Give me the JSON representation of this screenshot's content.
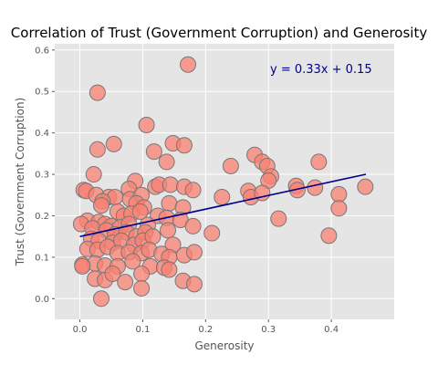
{
  "chart_data": {
    "type": "scatter",
    "title": "Correlation of Trust (Government Corruption) and Generosity",
    "xlabel": "Generosity",
    "ylabel": "Trust (Government Corruption)",
    "xlim": [
      -0.04,
      0.5
    ],
    "ylim": [
      -0.05,
      0.615
    ],
    "xticks": [
      "0.0",
      "0.1",
      "0.2",
      "0.3",
      "0.4"
    ],
    "yticks": [
      "0.0",
      "0.1",
      "0.2",
      "0.3",
      "0.4",
      "0.5",
      "0.6"
    ],
    "grid": true,
    "equation": "y = 0.33x + 0.15",
    "colors": {
      "background": "#e5e5e5",
      "grid": "#ffffff",
      "point_fill": "#fa8072",
      "point_stroke": "#777777",
      "regression_line": "#00008b",
      "equation_text": "#00008b"
    },
    "regression": {
      "slope": 0.33,
      "intercept": 0.15,
      "x_range": [
        0.0,
        0.455
      ]
    },
    "points": [
      [
        0.172,
        0.565
      ],
      [
        0.028,
        0.497
      ],
      [
        0.106,
        0.419
      ],
      [
        0.054,
        0.373
      ],
      [
        0.148,
        0.375
      ],
      [
        0.166,
        0.37
      ],
      [
        0.028,
        0.36
      ],
      [
        0.118,
        0.355
      ],
      [
        0.278,
        0.347
      ],
      [
        0.29,
        0.33
      ],
      [
        0.298,
        0.32
      ],
      [
        0.38,
        0.33
      ],
      [
        0.24,
        0.32
      ],
      [
        0.138,
        0.33
      ],
      [
        0.022,
        0.3
      ],
      [
        0.304,
        0.295
      ],
      [
        0.3,
        0.285
      ],
      [
        0.088,
        0.284
      ],
      [
        0.12,
        0.27
      ],
      [
        0.126,
        0.275
      ],
      [
        0.144,
        0.275
      ],
      [
        0.166,
        0.27
      ],
      [
        0.18,
        0.262
      ],
      [
        0.078,
        0.265
      ],
      [
        0.006,
        0.262
      ],
      [
        0.01,
        0.26
      ],
      [
        0.026,
        0.25
      ],
      [
        0.046,
        0.245
      ],
      [
        0.056,
        0.245
      ],
      [
        0.08,
        0.24
      ],
      [
        0.098,
        0.25
      ],
      [
        0.268,
        0.26
      ],
      [
        0.272,
        0.245
      ],
      [
        0.29,
        0.255
      ],
      [
        0.344,
        0.272
      ],
      [
        0.346,
        0.262
      ],
      [
        0.374,
        0.268
      ],
      [
        0.412,
        0.252
      ],
      [
        0.454,
        0.27
      ],
      [
        0.226,
        0.245
      ],
      [
        0.036,
        0.235
      ],
      [
        0.034,
        0.225
      ],
      [
        0.09,
        0.23
      ],
      [
        0.142,
        0.23
      ],
      [
        0.164,
        0.22
      ],
      [
        0.412,
        0.218
      ],
      [
        0.316,
        0.193
      ],
      [
        0.102,
        0.22
      ],
      [
        0.06,
        0.21
      ],
      [
        0.07,
        0.2
      ],
      [
        0.082,
        0.205
      ],
      [
        0.096,
        0.21
      ],
      [
        0.124,
        0.2
      ],
      [
        0.138,
        0.195
      ],
      [
        0.16,
        0.19
      ],
      [
        0.012,
        0.188
      ],
      [
        0.002,
        0.18
      ],
      [
        0.03,
        0.185
      ],
      [
        0.04,
        0.18
      ],
      [
        0.05,
        0.175
      ],
      [
        0.064,
        0.172
      ],
      [
        0.078,
        0.18
      ],
      [
        0.108,
        0.178
      ],
      [
        0.18,
        0.175
      ],
      [
        0.21,
        0.158
      ],
      [
        0.02,
        0.17
      ],
      [
        0.042,
        0.165
      ],
      [
        0.056,
        0.155
      ],
      [
        0.074,
        0.16
      ],
      [
        0.09,
        0.15
      ],
      [
        0.104,
        0.16
      ],
      [
        0.14,
        0.165
      ],
      [
        0.396,
        0.152
      ],
      [
        0.018,
        0.145
      ],
      [
        0.03,
        0.14
      ],
      [
        0.052,
        0.135
      ],
      [
        0.066,
        0.14
      ],
      [
        0.086,
        0.13
      ],
      [
        0.1,
        0.14
      ],
      [
        0.116,
        0.15
      ],
      [
        0.148,
        0.13
      ],
      [
        0.012,
        0.12
      ],
      [
        0.028,
        0.118
      ],
      [
        0.044,
        0.125
      ],
      [
        0.06,
        0.11
      ],
      [
        0.078,
        0.112
      ],
      [
        0.098,
        0.11
      ],
      [
        0.11,
        0.118
      ],
      [
        0.13,
        0.108
      ],
      [
        0.142,
        0.1
      ],
      [
        0.166,
        0.105
      ],
      [
        0.182,
        0.112
      ],
      [
        0.004,
        0.082
      ],
      [
        0.024,
        0.085
      ],
      [
        0.04,
        0.08
      ],
      [
        0.06,
        0.078
      ],
      [
        0.084,
        0.09
      ],
      [
        0.112,
        0.078
      ],
      [
        0.134,
        0.075
      ],
      [
        0.142,
        0.07
      ],
      [
        0.024,
        0.048
      ],
      [
        0.04,
        0.045
      ],
      [
        0.052,
        0.06
      ],
      [
        0.072,
        0.04
      ],
      [
        0.098,
        0.06
      ],
      [
        0.164,
        0.043
      ],
      [
        0.182,
        0.035
      ],
      [
        0.098,
        0.025
      ],
      [
        0.034,
        0.0
      ],
      [
        0.004,
        0.078
      ]
    ]
  }
}
